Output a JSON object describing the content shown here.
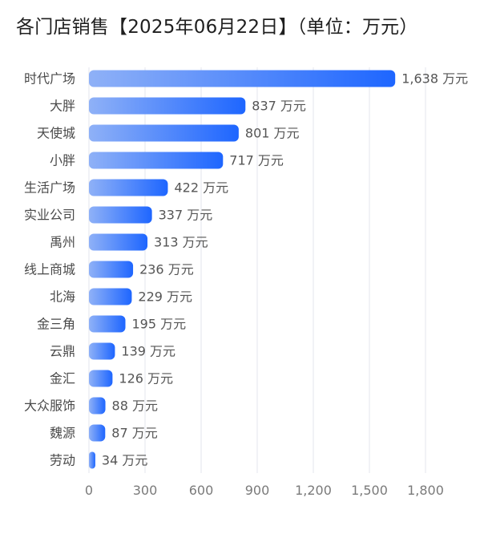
{
  "chart_data": {
    "type": "bar",
    "orientation": "horizontal",
    "title": "各门店销售【2025年06月22日】（单位：万元）",
    "categories": [
      "时代广场",
      "大胖",
      "天使城",
      "小胖",
      "生活广场",
      "实业公司",
      "禹州",
      "线上商城",
      "北海",
      "金三角",
      "云鼎",
      "金汇",
      "大众服饰",
      "魏源",
      "劳动"
    ],
    "values": [
      1638,
      837,
      801,
      717,
      422,
      337,
      313,
      236,
      229,
      195,
      139,
      126,
      88,
      87,
      34
    ],
    "value_labels": [
      "1,638 万元",
      "837 万元",
      "801 万元",
      "717 万元",
      "422 万元",
      "337 万元",
      "313 万元",
      "236 万元",
      "229 万元",
      "195 万元",
      "139 万元",
      "126 万元",
      "88 万元",
      "87 万元",
      "34 万元"
    ],
    "x_ticks": [
      0,
      300,
      600,
      900,
      1200,
      1500,
      1800
    ],
    "x_tick_labels": [
      "0",
      "300",
      "600",
      "900",
      "1,200",
      "1,500",
      "1,800"
    ],
    "xlim": [
      0,
      1800
    ],
    "xlabel": "",
    "ylabel": "",
    "grid": "vertical",
    "legend": "none",
    "colors": {
      "bar_start": "#8fb1f7",
      "bar_end": "#1e66ff",
      "grid": "#e3e6ec",
      "title": "#1f1f1f"
    }
  }
}
